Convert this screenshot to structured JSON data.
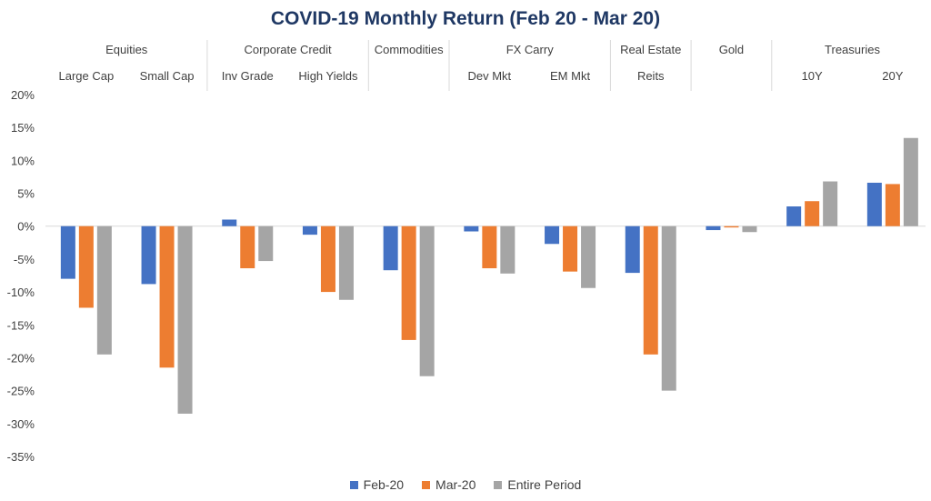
{
  "chart_data": {
    "type": "bar",
    "title": "COVID-19 Monthly Return (Feb 20 - Mar 20)",
    "groups": [
      "Equities",
      "Corporate Credit",
      "Commodities",
      "FX Carry",
      "Real Estate",
      "Gold",
      "Treasuries"
    ],
    "categories": [
      {
        "group": "Equities",
        "label": "Large Cap"
      },
      {
        "group": "Equities",
        "label": "Small Cap"
      },
      {
        "group": "Corporate Credit",
        "label": "Inv Grade"
      },
      {
        "group": "Corporate Credit",
        "label": "High Yields"
      },
      {
        "group": "Commodities",
        "label": ""
      },
      {
        "group": "FX Carry",
        "label": "Dev Mkt"
      },
      {
        "group": "FX Carry",
        "label": "EM Mkt"
      },
      {
        "group": "Real Estate",
        "label": "Reits"
      },
      {
        "group": "Gold",
        "label": ""
      },
      {
        "group": "Treasuries",
        "label": "10Y"
      },
      {
        "group": "Treasuries",
        "label": "20Y"
      }
    ],
    "series": [
      {
        "name": "Feb-20",
        "color": "#4472c4",
        "values": [
          -8.0,
          -8.8,
          1.0,
          -1.3,
          -6.7,
          -0.8,
          -2.7,
          -7.1,
          -0.6,
          3.0,
          6.6
        ]
      },
      {
        "name": "Mar-20",
        "color": "#ed7d31",
        "values": [
          -12.4,
          -21.5,
          -6.4,
          -10.0,
          -17.3,
          -6.4,
          -6.9,
          -19.5,
          -0.2,
          3.8,
          6.4
        ]
      },
      {
        "name": "Entire Period",
        "color": "#a5a5a5",
        "values": [
          -19.5,
          -28.5,
          -5.3,
          -11.2,
          -22.8,
          -7.2,
          -9.4,
          -25.0,
          -0.9,
          6.8,
          13.4
        ]
      }
    ],
    "ylim": [
      -35,
      20
    ],
    "yticks": [
      20,
      15,
      10,
      5,
      0,
      -5,
      -10,
      -15,
      -20,
      -25,
      -30,
      -35
    ],
    "ytick_labels": [
      "20%",
      "15%",
      "10%",
      "5%",
      "0%",
      "-5%",
      "-10%",
      "-15%",
      "-20%",
      "-25%",
      "-30%",
      "-35%"
    ],
    "legend_position": "bottom",
    "grid": false
  }
}
